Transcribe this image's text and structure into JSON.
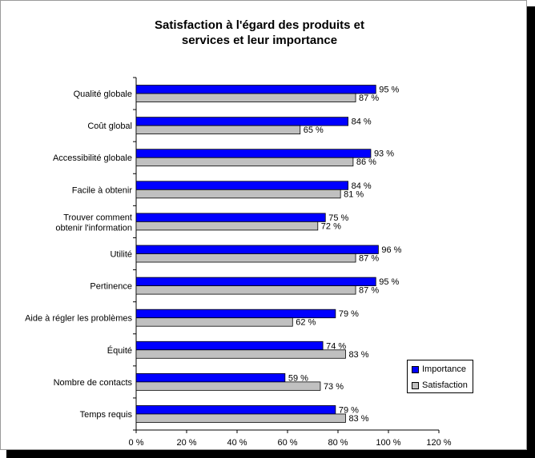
{
  "title_lines": [
    "Satisfaction à l'égard des produits et",
    "services et leur importance"
  ],
  "colors": {
    "importance": "#0000ff",
    "satisfaction": "#c0c0c0"
  },
  "chart_data": {
    "type": "bar",
    "orientation": "horizontal",
    "title": "Satisfaction à l'égard des produits et services et leur importance",
    "categories": [
      [
        "Qualité globale"
      ],
      [
        "Coût global"
      ],
      [
        "Accessibilité globale"
      ],
      [
        "Facile à obtenir"
      ],
      [
        "Trouver comment",
        "obtenir l'information"
      ],
      [
        "Utilité"
      ],
      [
        "Pertinence"
      ],
      [
        "Aide à régler les problèmes"
      ],
      [
        "Équité"
      ],
      [
        "Nombre de contacts"
      ],
      [
        "Temps requis"
      ]
    ],
    "series": [
      {
        "name": "Importance",
        "values": [
          95,
          84,
          93,
          84,
          75,
          96,
          95,
          79,
          74,
          59,
          79
        ]
      },
      {
        "name": "Satisfaction",
        "values": [
          87,
          65,
          86,
          81,
          72,
          87,
          87,
          62,
          83,
          73,
          83
        ]
      }
    ],
    "data_labels": {
      "Importance": [
        "95 %",
        "84 %",
        "93 %",
        "84 %",
        "75 %",
        "96 %",
        "95 %",
        "79 %",
        "74 %",
        "59 %",
        "79 %"
      ],
      "Satisfaction": [
        "87 %",
        "65 %",
        "86 %",
        "81 %",
        "72 %",
        "87 %",
        "87 %",
        "62 %",
        "83 %",
        "73 %",
        "83 %"
      ]
    },
    "xlim": [
      0,
      120
    ],
    "x_ticks": [
      0,
      20,
      40,
      60,
      80,
      100,
      120
    ],
    "x_tick_labels": [
      "0 %",
      "20 %",
      "40 %",
      "60 %",
      "80 %",
      "100 %",
      "120 %"
    ],
    "grid": false,
    "legend_position": "right"
  }
}
